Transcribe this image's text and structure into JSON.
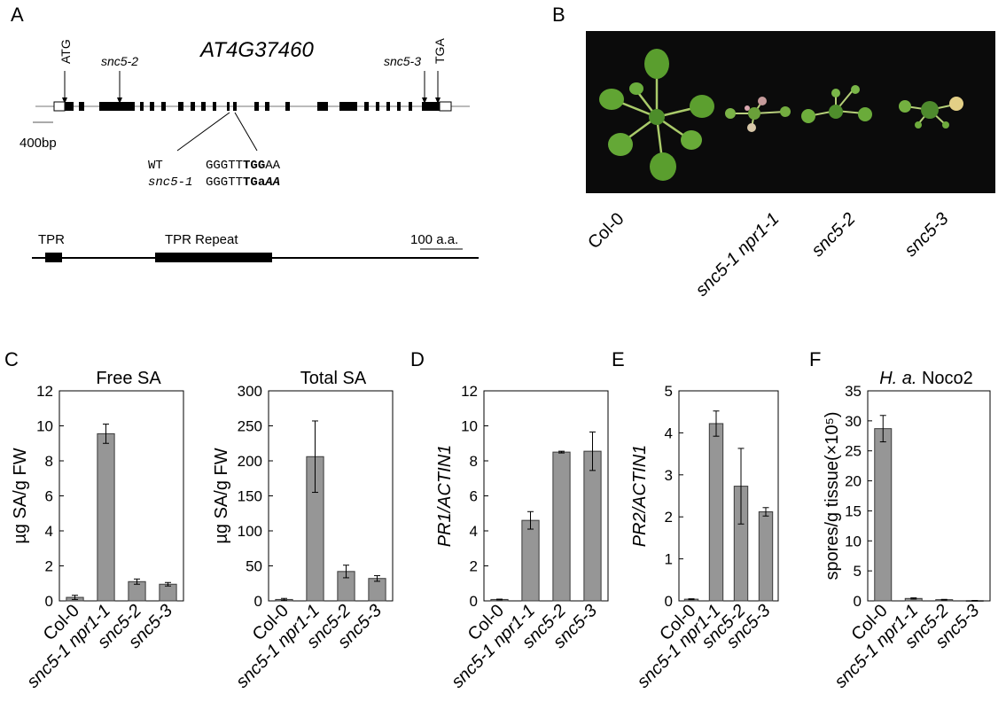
{
  "panels": {
    "A": {
      "letter": "A",
      "gene_name": "AT4G37460",
      "start_codon": "ATG",
      "stop_codon": "TGA",
      "allele_left": "snc5-2",
      "allele_right": "snc5-3",
      "scale_bar": "400bp",
      "wt_label": "WT",
      "wt_seq_plain": "GGGTT",
      "wt_seq_bold": "TGG",
      "wt_seq_tail": "AA",
      "mut_label": "snc5-1",
      "mut_seq_plain": "GGGTT",
      "mut_seq_bold": "TGa",
      "mut_seq_tail": "AA",
      "domain_1": "TPR",
      "domain_2": "TPR Repeat",
      "protein_scale": "100 a.a."
    },
    "B": {
      "letter": "B",
      "genotypes": [
        "Col-0",
        "snc5-1 npr1-1",
        "snc5-2",
        "snc5-3"
      ]
    }
  },
  "chart_data": [
    {
      "id": "free_sa",
      "panel_letter": "C",
      "type": "bar",
      "title": "Free SA",
      "ylabel": "µg SA/g FW",
      "categories": [
        "Col-0",
        "snc5-1 npr1-1",
        "snc5-2",
        "snc5-3"
      ],
      "values": [
        0.2,
        9.55,
        1.1,
        0.95
      ],
      "errors": [
        0.12,
        0.55,
        0.15,
        0.1
      ],
      "ylim": [
        0,
        12
      ],
      "yticks": [
        0,
        2,
        4,
        6,
        8,
        10,
        12
      ]
    },
    {
      "id": "total_sa",
      "panel_letter": "",
      "type": "bar",
      "title": "Total SA",
      "ylabel": "µg SA/g FW",
      "categories": [
        "Col-0",
        "snc5-1 npr1-1",
        "snc5-2",
        "snc5-3"
      ],
      "values": [
        2,
        206,
        42,
        32
      ],
      "errors": [
        1.5,
        51,
        9,
        4
      ],
      "ylim": [
        0,
        300
      ],
      "yticks": [
        0,
        50,
        100,
        150,
        200,
        250,
        300
      ]
    },
    {
      "id": "pr1",
      "panel_letter": "D",
      "type": "bar",
      "title": "",
      "ylabel": "PR1/ACTIN1",
      "categories": [
        "Col-0",
        "snc5-1 npr1-1",
        "snc5-2",
        "snc5-3"
      ],
      "values": [
        0.08,
        4.6,
        8.5,
        8.55
      ],
      "errors": [
        0.02,
        0.5,
        0.05,
        1.1
      ],
      "ylim": [
        0,
        12
      ],
      "yticks": [
        0,
        2,
        4,
        6,
        8,
        10,
        12
      ]
    },
    {
      "id": "pr2",
      "panel_letter": "E",
      "type": "bar",
      "title": "",
      "ylabel": "PR2/ACTIN1",
      "categories": [
        "Col-0",
        "snc5-1 npr1-1",
        "snc5-2",
        "snc5-3"
      ],
      "values": [
        0.04,
        4.22,
        2.73,
        2.12
      ],
      "errors": [
        0.01,
        0.3,
        0.9,
        0.1
      ],
      "ylim": [
        0,
        5
      ],
      "yticks": [
        0,
        1,
        2,
        3,
        4,
        5
      ]
    },
    {
      "id": "noco2",
      "panel_letter": "F",
      "type": "bar",
      "title_italic": "H. a.",
      "title": "Noco2",
      "ylabel": "spores/g tissue(×10⁵)",
      "categories": [
        "Col-0",
        "snc5-1 npr1-1",
        "snc5-2",
        "snc5-3"
      ],
      "values": [
        28.7,
        0.4,
        0.2,
        0.05
      ],
      "errors": [
        2.2,
        0.1,
        0.05,
        0.02
      ],
      "ylim": [
        0,
        35
      ],
      "yticks": [
        0,
        5,
        10,
        15,
        20,
        25,
        30,
        35
      ]
    }
  ]
}
